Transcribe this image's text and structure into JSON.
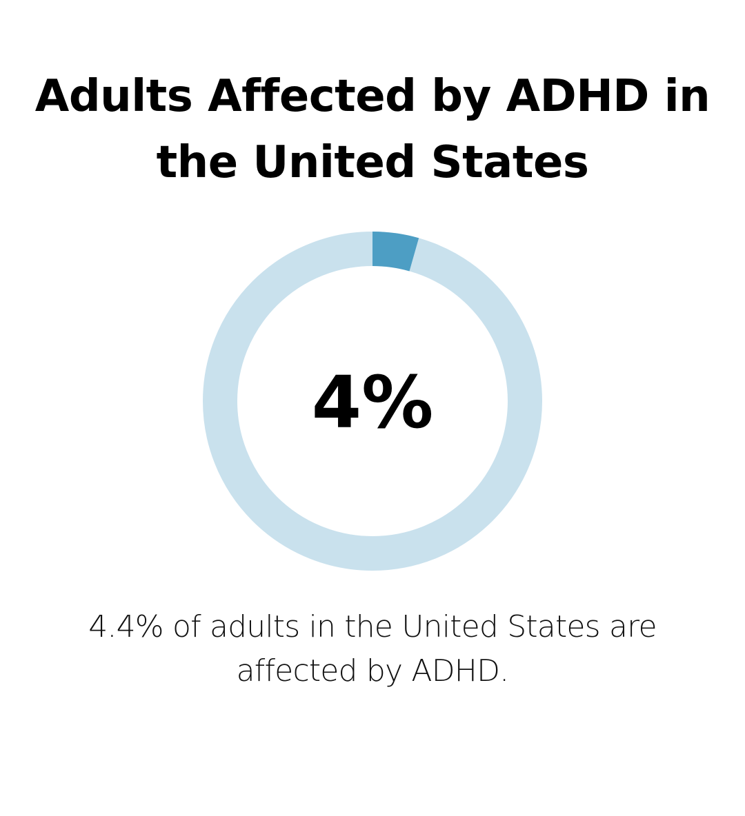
{
  "chart_data": {
    "type": "pie",
    "style": "donut",
    "title": "Adults Affected by ADHD in the United States",
    "center_label": "4%",
    "value_percent": 4.4,
    "total_percent": 100,
    "caption": "4.4% of adults in the United States are affected by ADHD.",
    "colors": {
      "value": "#4d9ec4",
      "remainder": "#c9e1ed"
    }
  }
}
